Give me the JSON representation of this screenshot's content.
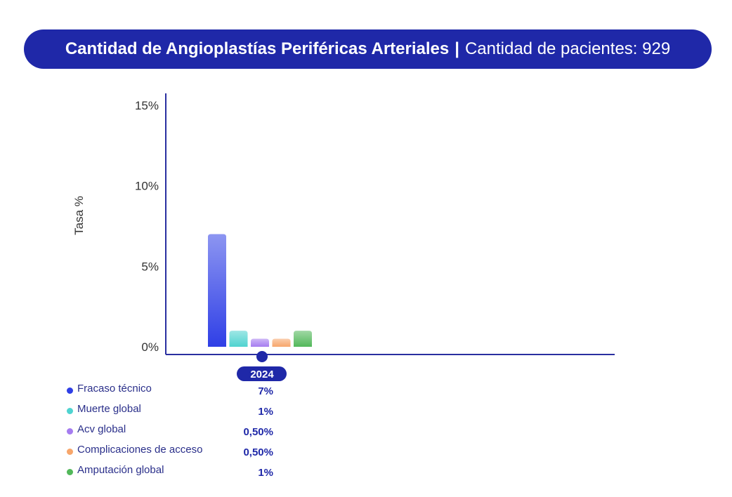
{
  "header": {
    "title": "Cantidad de Angioplastías Periféricas Arteriales",
    "separator": "|",
    "subtitle": "Cantidad de pacientes: 929"
  },
  "chart_data": {
    "type": "bar",
    "categories": [
      "2024"
    ],
    "series": [
      {
        "name": "Fracaso técnico",
        "values": [
          7
        ],
        "label": "7%",
        "color": "#2f3fe6"
      },
      {
        "name": "Muerte global",
        "values": [
          1
        ],
        "label": "1%",
        "color": "#4fd3d0"
      },
      {
        "name": "Acv global",
        "values": [
          0.5
        ],
        "label": "0,50%",
        "color": "#a57cf0"
      },
      {
        "name": "Complicaciones de acceso",
        "values": [
          0.5
        ],
        "label": "0,50%",
        "color": "#f7a66b"
      },
      {
        "name": "Amputación global",
        "values": [
          1
        ],
        "label": "1%",
        "color": "#52b85a"
      }
    ],
    "ylabel": "Tasa %",
    "xlabel": "",
    "ylim": [
      0,
      15
    ],
    "yticks": [
      "0%",
      "5%",
      "10%",
      "15%"
    ],
    "grid": false,
    "legend_position": "bottom-left"
  },
  "colors": {
    "accent": "#1f28a8",
    "axis": "#2a2fa0",
    "tick_text": "#333333"
  }
}
